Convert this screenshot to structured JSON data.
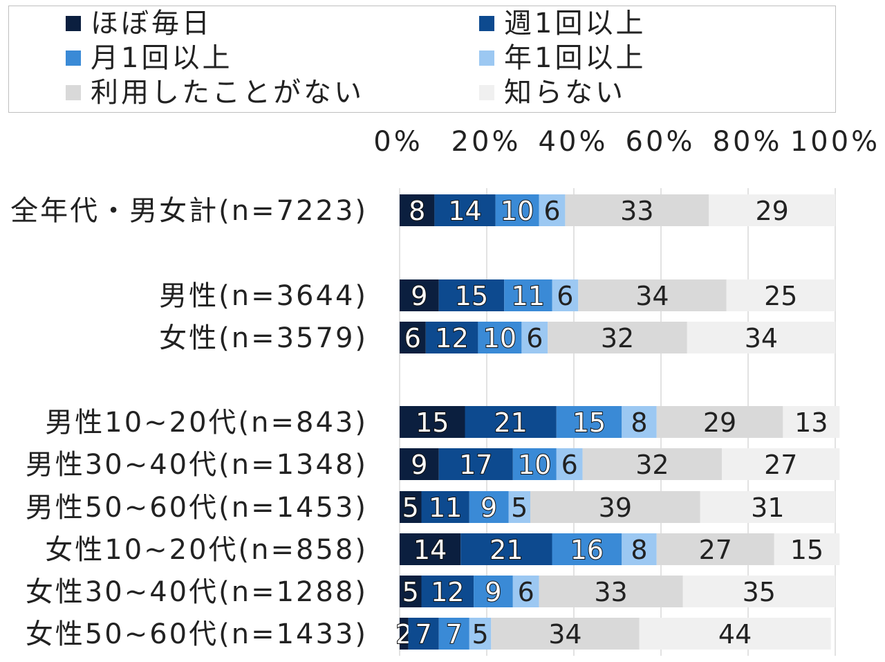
{
  "chart_data": {
    "type": "bar",
    "orientation": "horizontal",
    "stacked": true,
    "xlim": [
      0,
      100
    ],
    "xticks": [
      "0%",
      "20%",
      "40%",
      "60%",
      "80%",
      "100%"
    ],
    "legend_position": "top",
    "grid": true,
    "series": [
      {
        "name": "ほぼ毎日",
        "color": "#0b1f3f"
      },
      {
        "name": "週1回以上",
        "color": "#0d4a8f"
      },
      {
        "name": "月1回以上",
        "color": "#3a8ad6"
      },
      {
        "name": "年1回以上",
        "color": "#9cc8f2"
      },
      {
        "name": "利用したことがない",
        "color": "#d9d9d9"
      },
      {
        "name": "知らない",
        "color": "#f0f0f0"
      }
    ],
    "rows": [
      {
        "label": "全年代・男女計(n=7223)",
        "values": [
          8,
          14,
          10,
          6,
          33,
          29
        ]
      },
      {
        "label": "男性(n=3644)",
        "values": [
          9,
          15,
          11,
          6,
          34,
          25
        ]
      },
      {
        "label": "女性(n=3579)",
        "values": [
          6,
          12,
          10,
          6,
          32,
          34
        ]
      },
      {
        "label": "男性10~20代(n=843)",
        "values": [
          15,
          21,
          15,
          8,
          29,
          13
        ]
      },
      {
        "label": "男性30~40代(n=1348)",
        "values": [
          9,
          17,
          10,
          6,
          32,
          27
        ]
      },
      {
        "label": "男性50~60代(n=1453)",
        "values": [
          5,
          11,
          9,
          5,
          39,
          31
        ]
      },
      {
        "label": "女性10~20代(n=858)",
        "values": [
          14,
          21,
          16,
          8,
          27,
          15
        ]
      },
      {
        "label": "女性30~40代(n=1288)",
        "values": [
          5,
          12,
          9,
          6,
          33,
          35
        ]
      },
      {
        "label": "女性50~60代(n=1433)",
        "values": [
          2,
          7,
          7,
          5,
          34,
          44
        ]
      }
    ]
  }
}
